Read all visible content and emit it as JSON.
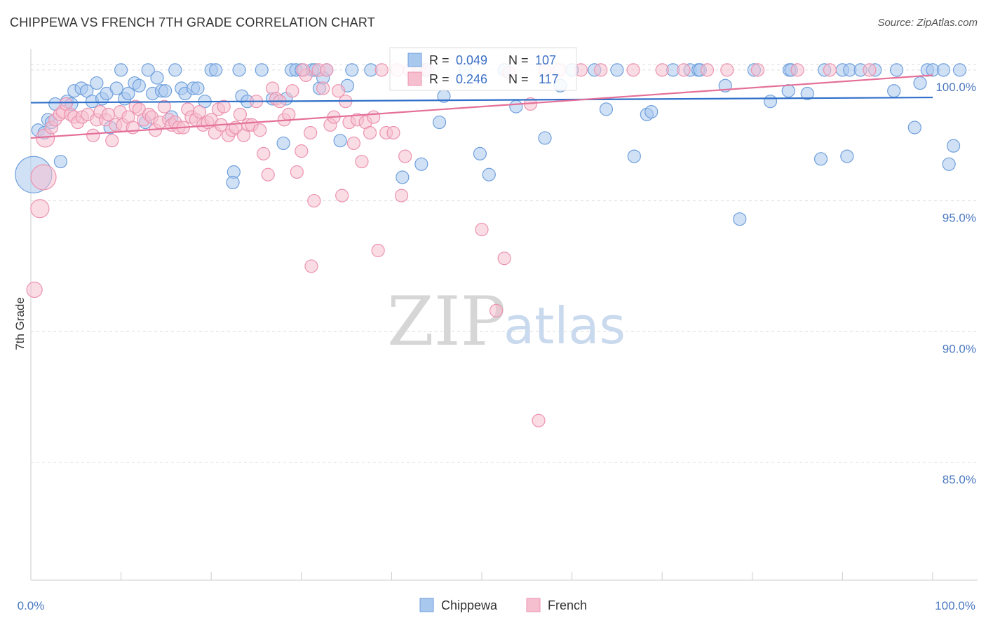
{
  "header": {
    "title": "CHIPPEWA VS FRENCH 7TH GRADE CORRELATION CHART",
    "source": "Source: ZipAtlas.com"
  },
  "watermark": {
    "part1": "ZIP",
    "part2": "atlas"
  },
  "colors": {
    "chippewa_fill": "#a9c8ee",
    "chippewa_stroke": "#6f9fdc",
    "chippewa_line": "#2f6fc9",
    "french_fill": "#f6bfd0",
    "french_stroke": "#ec93b0",
    "french_line": "#e46f98",
    "grid": "#dddddd",
    "tick_text": "#4a78c0"
  },
  "stats_box": {
    "rows": [
      {
        "series": "Chippewa",
        "r_label": "R = ",
        "r_value": "0.049",
        "n_label": "N = ",
        "n_value": "107"
      },
      {
        "series": "French",
        "r_label": "R = ",
        "r_value": "0.246",
        "n_label": "N = ",
        "n_value": "117"
      }
    ]
  },
  "chart_data": {
    "type": "scatter",
    "title": "CHIPPEWA VS FRENCH 7TH GRADE CORRELATION CHART",
    "xlabel": "",
    "ylabel": "7th Grade",
    "xlim": [
      0,
      100
    ],
    "ylim": [
      80.5,
      100.8
    ],
    "x_tick_labels": [
      "0.0%",
      "100.0%"
    ],
    "y_ticks": [
      85,
      90,
      95,
      100
    ],
    "y_tick_labels": [
      "85.0%",
      "90.0%",
      "95.0%",
      "100.0%"
    ],
    "grid": "horizontal dashed",
    "legend_position": "bottom-center",
    "series": [
      {
        "name": "Chippewa",
        "r": 0.049,
        "n": 107,
        "trend": {
          "x": [
            0,
            100
          ],
          "y": [
            98.75,
            98.95
          ]
        },
        "points": [
          [
            0.3,
            96.0,
            26
          ],
          [
            0.8,
            97.7,
            9
          ],
          [
            1.5,
            97.6,
            9
          ],
          [
            1.9,
            98.1,
            9
          ],
          [
            2.3,
            98.0,
            9
          ],
          [
            2.7,
            98.7,
            9
          ],
          [
            3.3,
            96.5,
            9
          ],
          [
            4.0,
            98.8,
            9
          ],
          [
            4.5,
            98.7,
            9
          ],
          [
            4.8,
            99.2,
            9
          ],
          [
            5.6,
            99.3,
            9
          ],
          [
            6.2,
            99.2,
            9
          ],
          [
            6.8,
            98.8,
            9
          ],
          [
            7.3,
            99.5,
            9
          ],
          [
            7.9,
            98.9,
            9
          ],
          [
            8.4,
            99.1,
            9
          ],
          [
            8.8,
            97.8,
            9
          ],
          [
            9.5,
            99.3,
            9
          ],
          [
            10.0,
            100.0,
            9
          ],
          [
            10.4,
            98.9,
            9
          ],
          [
            10.8,
            99.1,
            9
          ],
          [
            11.5,
            99.5,
            9
          ],
          [
            12.0,
            99.4,
            9
          ],
          [
            12.7,
            98.0,
            9
          ],
          [
            13.0,
            100.0,
            9
          ],
          [
            13.5,
            99.1,
            9
          ],
          [
            14.0,
            99.7,
            9
          ],
          [
            14.5,
            99.2,
            9
          ],
          [
            14.9,
            99.2,
            9
          ],
          [
            15.6,
            98.2,
            9
          ],
          [
            16.0,
            100.0,
            9
          ],
          [
            16.7,
            99.3,
            9
          ],
          [
            17.1,
            99.1,
            9
          ],
          [
            18.0,
            99.3,
            9
          ],
          [
            18.5,
            99.3,
            9
          ],
          [
            19.3,
            98.8,
            9
          ],
          [
            20.0,
            100.0,
            9
          ],
          [
            20.5,
            100.0,
            9
          ],
          [
            22.5,
            96.1,
            9
          ],
          [
            22.4,
            95.7,
            9
          ],
          [
            23.1,
            100.0,
            9
          ],
          [
            23.4,
            99.0,
            9
          ],
          [
            24.0,
            98.8,
            9
          ],
          [
            25.6,
            100.0,
            9
          ],
          [
            26.8,
            98.9,
            9
          ],
          [
            28.0,
            97.2,
            9
          ],
          [
            28.3,
            98.9,
            9
          ],
          [
            28.9,
            100.0,
            9
          ],
          [
            29.4,
            100.0,
            9
          ],
          [
            30.0,
            100.0,
            9
          ],
          [
            31.2,
            100.0,
            9
          ],
          [
            31.5,
            100.0,
            9
          ],
          [
            32.0,
            99.3,
            9
          ],
          [
            32.4,
            99.7,
            9
          ],
          [
            32.8,
            100.0,
            9
          ],
          [
            34.3,
            97.3,
            9
          ],
          [
            35.1,
            99.4,
            9
          ],
          [
            35.6,
            100.0,
            9
          ],
          [
            37.7,
            100.0,
            9
          ],
          [
            41.2,
            95.9,
            9
          ],
          [
            43.3,
            96.4,
            9
          ],
          [
            43.7,
            100.0,
            9
          ],
          [
            45.3,
            98.0,
            9
          ],
          [
            45.8,
            99.0,
            9
          ],
          [
            48.2,
            100.0,
            9
          ],
          [
            49.8,
            96.8,
            9
          ],
          [
            50.8,
            96.0,
            9
          ],
          [
            52.5,
            100.0,
            9
          ],
          [
            53.8,
            98.6,
            9
          ],
          [
            57.0,
            97.4,
            9
          ],
          [
            58.7,
            99.4,
            9
          ],
          [
            60.0,
            100.0,
            9
          ],
          [
            62.5,
            100.0,
            9
          ],
          [
            63.8,
            98.5,
            9
          ],
          [
            65.0,
            100.0,
            9
          ],
          [
            66.9,
            96.7,
            9
          ],
          [
            68.3,
            98.3,
            9
          ],
          [
            68.8,
            98.4,
            9
          ],
          [
            71.2,
            100.0,
            9
          ],
          [
            73.1,
            100.0,
            9
          ],
          [
            74.0,
            100.0,
            9
          ],
          [
            74.2,
            100.0,
            9
          ],
          [
            77.0,
            99.4,
            9
          ],
          [
            78.6,
            94.3,
            9
          ],
          [
            80.2,
            100.0,
            9
          ],
          [
            82.0,
            98.8,
            9
          ],
          [
            84.0,
            99.2,
            9
          ],
          [
            84.1,
            100.0,
            9
          ],
          [
            84.3,
            100.0,
            9
          ],
          [
            86.1,
            99.1,
            9
          ],
          [
            87.6,
            96.6,
            9
          ],
          [
            88.0,
            100.0,
            9
          ],
          [
            90.0,
            100.0,
            9
          ],
          [
            90.5,
            96.7,
            9
          ],
          [
            90.8,
            100.0,
            9
          ],
          [
            92.0,
            100.0,
            9
          ],
          [
            93.6,
            100.0,
            9
          ],
          [
            95.7,
            99.2,
            9
          ],
          [
            96.0,
            100.0,
            9
          ],
          [
            98.0,
            97.8,
            9
          ],
          [
            98.6,
            99.5,
            9
          ],
          [
            99.4,
            100.0,
            9
          ],
          [
            100.0,
            100.0,
            9
          ],
          [
            101.2,
            100.0,
            9
          ],
          [
            101.8,
            96.4,
            9
          ],
          [
            102.3,
            97.1,
            9
          ],
          [
            103.0,
            100.0,
            9
          ]
        ]
      },
      {
        "name": "French",
        "r": 0.246,
        "n": 117,
        "trend": {
          "x": [
            0,
            100
          ],
          "y": [
            97.4,
            99.8
          ]
        },
        "points": [
          [
            0.4,
            91.6,
            11
          ],
          [
            1.0,
            94.7,
            13
          ],
          [
            1.4,
            95.9,
            18
          ],
          [
            1.6,
            97.4,
            13
          ],
          [
            2.3,
            97.8,
            9
          ],
          [
            2.7,
            98.1,
            9
          ],
          [
            3.2,
            98.3,
            9
          ],
          [
            3.5,
            98.4,
            9
          ],
          [
            3.9,
            98.7,
            9
          ],
          [
            4.4,
            98.3,
            9
          ],
          [
            4.8,
            98.2,
            9
          ],
          [
            5.2,
            98.0,
            9
          ],
          [
            5.7,
            98.2,
            9
          ],
          [
            6.3,
            98.3,
            9
          ],
          [
            6.9,
            97.5,
            9
          ],
          [
            7.3,
            98.1,
            9
          ],
          [
            7.7,
            98.4,
            9
          ],
          [
            8.3,
            98.1,
            9
          ],
          [
            8.6,
            98.3,
            9
          ],
          [
            9.0,
            97.3,
            9
          ],
          [
            9.4,
            97.9,
            9
          ],
          [
            9.9,
            98.4,
            9
          ],
          [
            10.2,
            97.9,
            9
          ],
          [
            10.8,
            98.2,
            9
          ],
          [
            11.3,
            97.8,
            9
          ],
          [
            11.6,
            98.6,
            9
          ],
          [
            12.0,
            98.5,
            9
          ],
          [
            12.5,
            98.1,
            9
          ],
          [
            13.1,
            98.3,
            9
          ],
          [
            13.4,
            98.2,
            9
          ],
          [
            13.8,
            97.7,
            9
          ],
          [
            14.3,
            98.0,
            9
          ],
          [
            14.8,
            98.6,
            9
          ],
          [
            15.3,
            98.1,
            9
          ],
          [
            15.6,
            97.9,
            9
          ],
          [
            16.0,
            98.0,
            9
          ],
          [
            16.4,
            97.8,
            9
          ],
          [
            16.9,
            97.8,
            9
          ],
          [
            17.4,
            98.5,
            9
          ],
          [
            17.8,
            98.2,
            9
          ],
          [
            18.3,
            98.1,
            9
          ],
          [
            18.7,
            98.4,
            9
          ],
          [
            19.1,
            97.9,
            9
          ],
          [
            19.6,
            98.0,
            9
          ],
          [
            20.0,
            98.1,
            9
          ],
          [
            20.4,
            97.6,
            9
          ],
          [
            20.8,
            98.5,
            9
          ],
          [
            21.1,
            97.9,
            9
          ],
          [
            21.4,
            98.6,
            9
          ],
          [
            21.9,
            97.5,
            9
          ],
          [
            22.3,
            97.7,
            9
          ],
          [
            22.7,
            97.8,
            9
          ],
          [
            23.2,
            98.3,
            9
          ],
          [
            23.6,
            97.5,
            9
          ],
          [
            24.1,
            97.9,
            9
          ],
          [
            24.5,
            97.9,
            9
          ],
          [
            25.0,
            98.8,
            9
          ],
          [
            25.4,
            97.7,
            9
          ],
          [
            25.8,
            96.8,
            9
          ],
          [
            26.3,
            96.0,
            9
          ],
          [
            26.8,
            99.3,
            9
          ],
          [
            27.2,
            98.9,
            9
          ],
          [
            27.6,
            98.8,
            9
          ],
          [
            28.1,
            98.1,
            9
          ],
          [
            28.6,
            98.3,
            9
          ],
          [
            29.0,
            99.2,
            9
          ],
          [
            29.5,
            96.1,
            9
          ],
          [
            30.0,
            96.9,
            9
          ],
          [
            30.5,
            99.8,
            9
          ],
          [
            31.0,
            97.6,
            9
          ],
          [
            31.4,
            95.0,
            9
          ],
          [
            31.9,
            100.0,
            9
          ],
          [
            32.4,
            99.3,
            9
          ],
          [
            32.8,
            100.0,
            9
          ],
          [
            33.2,
            97.9,
            9
          ],
          [
            33.6,
            98.2,
            9
          ],
          [
            34.1,
            99.2,
            9
          ],
          [
            34.5,
            95.2,
            9
          ],
          [
            34.9,
            98.8,
            9
          ],
          [
            35.3,
            98.0,
            9
          ],
          [
            35.8,
            97.2,
            9
          ],
          [
            36.2,
            98.1,
            9
          ],
          [
            36.7,
            96.5,
            9
          ],
          [
            37.1,
            98.0,
            9
          ],
          [
            37.6,
            97.6,
            9
          ],
          [
            38.0,
            98.2,
            9
          ],
          [
            38.5,
            93.1,
            9
          ],
          [
            38.9,
            100.0,
            9
          ],
          [
            39.4,
            97.6,
            9
          ],
          [
            40.2,
            97.6,
            9
          ],
          [
            40.6,
            100.0,
            9
          ],
          [
            41.1,
            95.2,
            9
          ],
          [
            41.5,
            96.7,
            9
          ],
          [
            42.0,
            100.0,
            9
          ],
          [
            43.0,
            100.0,
            9
          ],
          [
            44.0,
            100.0,
            9
          ],
          [
            30.2,
            100.0,
            9
          ],
          [
            31.1,
            92.5,
            9
          ],
          [
            50.0,
            93.9,
            9
          ],
          [
            51.6,
            90.8,
            9
          ],
          [
            52.5,
            92.8,
            9
          ],
          [
            53.0,
            99.9,
            9
          ],
          [
            55.4,
            98.7,
            9
          ],
          [
            56.3,
            86.6,
            9
          ],
          [
            57.0,
            100.0,
            9
          ],
          [
            58.6,
            100.0,
            9
          ],
          [
            61.0,
            100.0,
            9
          ],
          [
            63.2,
            100.0,
            9
          ],
          [
            66.8,
            100.0,
            9
          ],
          [
            70.0,
            100.0,
            9
          ],
          [
            72.4,
            100.0,
            9
          ],
          [
            75.0,
            100.0,
            9
          ],
          [
            77.2,
            100.0,
            9
          ],
          [
            80.6,
            100.0,
            9
          ],
          [
            85.0,
            100.0,
            9
          ],
          [
            88.6,
            100.0,
            9
          ],
          [
            93.0,
            100.0,
            9
          ]
        ]
      }
    ]
  }
}
